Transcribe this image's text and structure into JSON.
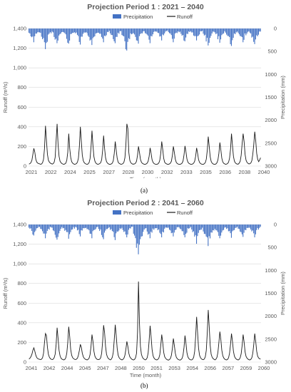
{
  "chart_data": [
    {
      "type": "line",
      "title": "Projection Period 1 : 2021 – 2040",
      "xlabel": "Time (month)",
      "ylabel": "Runoff (m³/s)",
      "y2label": "Precipitation (mm)",
      "ylim": [
        0,
        1400
      ],
      "y2lim": [
        0,
        3000
      ],
      "y2_inverted": true,
      "yticks": [
        "0",
        "200",
        "400",
        "600",
        "800",
        "1,000",
        "1,200",
        "1,400"
      ],
      "y2ticks": [
        "0",
        "500",
        "1000",
        "1500",
        "2000",
        "2500",
        "3000"
      ],
      "xticks": [
        "2021",
        "2022",
        "2024",
        "2025",
        "2027",
        "2028",
        "2030",
        "2032",
        "2033",
        "2035",
        "2036",
        "2038",
        "2040"
      ],
      "legend": [
        "Precipitation",
        "Runoff"
      ],
      "legend_position": "top-center",
      "grid": "horizontal",
      "series": [
        {
          "name": "Runoff",
          "type": "line",
          "color": "#1a1a1a",
          "annual_peaks": [
            180,
            410,
            430,
            330,
            400,
            360,
            310,
            250,
            430,
            200,
            185,
            250,
            200,
            205,
            185,
            300,
            240,
            330,
            330,
            350
          ],
          "values": [
            20,
            25,
            35,
            60,
            120,
            180,
            140,
            70,
            40,
            30,
            25,
            22,
            18,
            22,
            35,
            70,
            180,
            410,
            260,
            120,
            60,
            40,
            30,
            25,
            20,
            25,
            40,
            90,
            260,
            430,
            220,
            100,
            50,
            35,
            25,
            20,
            18,
            22,
            30,
            60,
            140,
            330,
            180,
            90,
            45,
            30,
            22,
            18,
            20,
            25,
            40,
            80,
            200,
            400,
            250,
            110,
            55,
            35,
            25,
            20,
            18,
            22,
            35,
            75,
            190,
            360,
            210,
            95,
            50,
            30,
            22,
            18,
            20,
            25,
            35,
            65,
            160,
            310,
            180,
            85,
            45,
            30,
            22,
            18,
            18,
            22,
            30,
            55,
            130,
            250,
            160,
            80,
            40,
            28,
            22,
            18,
            20,
            25,
            40,
            85,
            220,
            430,
            380,
            140,
            60,
            35,
            25,
            20,
            20,
            22,
            30,
            50,
            110,
            200,
            140,
            70,
            40,
            28,
            22,
            18,
            18,
            22,
            30,
            50,
            100,
            185,
            130,
            65,
            38,
            26,
            20,
            18,
            18,
            22,
            32,
            60,
            130,
            250,
            170,
            80,
            40,
            28,
            22,
            18,
            18,
            22,
            30,
            50,
            110,
            200,
            140,
            70,
            38,
            26,
            20,
            18,
            18,
            22,
            30,
            52,
            115,
            205,
            145,
            72,
            40,
            28,
            22,
            18,
            18,
            22,
            30,
            50,
            100,
            185,
            130,
            65,
            38,
            26,
            20,
            18,
            18,
            24,
            36,
            70,
            160,
            300,
            200,
            95,
            48,
            30,
            22,
            18,
            18,
            22,
            34,
            62,
            130,
            240,
            165,
            80,
            42,
            28,
            22,
            18,
            20,
            26,
            40,
            80,
            170,
            330,
            210,
            100,
            50,
            32,
            24,
            20,
            20,
            30,
            50,
            110,
            230,
            330,
            250,
            120,
            60,
            38,
            28,
            22,
            24,
            32,
            55,
            120,
            220,
            350,
            260,
            130,
            70,
            45,
            60,
            85
          ]
        },
        {
          "name": "Precipitation",
          "type": "bar",
          "color": "#4472c4",
          "axis": "y2",
          "unit": "mm",
          "annual_max": [
            300,
            450,
            320,
            330,
            350,
            360,
            300,
            320,
            480,
            330,
            320,
            260,
            300,
            280,
            260,
            370,
            310,
            380,
            300,
            340
          ]
        }
      ]
    },
    {
      "type": "line",
      "title": "Projection Period 2 : 2041 – 2060",
      "xlabel": "Time (month)",
      "ylabel": "Runoff (m³/s)",
      "y2label": "Precipitation (mm)",
      "ylim": [
        0,
        1400
      ],
      "y2lim": [
        0,
        3000
      ],
      "y2_inverted": true,
      "yticks": [
        "0",
        "200",
        "400",
        "600",
        "800",
        "1,000",
        "1,200",
        "1,400"
      ],
      "y2ticks": [
        "0",
        "500",
        "1000",
        "1500",
        "2000",
        "2500",
        "3000"
      ],
      "xticks": [
        "2041",
        "2042",
        "2044",
        "2045",
        "2047",
        "2048",
        "2050",
        "2051",
        "2053",
        "2054",
        "2056",
        "2057",
        "2059",
        "2060"
      ],
      "legend": [
        "Precipitation",
        "Runoff"
      ],
      "legend_position": "top-center",
      "grid": "horizontal",
      "series": [
        {
          "name": "Runoff",
          "type": "line",
          "color": "#1a1a1a",
          "annual_peaks": [
            145,
            290,
            350,
            360,
            180,
            280,
            375,
            380,
            210,
            820,
            370,
            280,
            240,
            270,
            460,
            530,
            310,
            290,
            280,
            290
          ],
          "values": [
            30,
            40,
            55,
            80,
            120,
            145,
            110,
            70,
            45,
            35,
            30,
            28,
            25,
            30,
            45,
            90,
            200,
            290,
            270,
            150,
            80,
            50,
            35,
            28,
            25,
            30,
            45,
            80,
            180,
            350,
            240,
            120,
            65,
            40,
            30,
            25,
            22,
            28,
            45,
            90,
            200,
            360,
            260,
            130,
            70,
            45,
            35,
            28,
            25,
            30,
            40,
            70,
            120,
            180,
            150,
            90,
            55,
            38,
            30,
            25,
            22,
            28,
            40,
            75,
            160,
            280,
            210,
            110,
            60,
            40,
            30,
            25,
            25,
            30,
            45,
            90,
            210,
            375,
            300,
            160,
            80,
            50,
            35,
            28,
            22,
            30,
            50,
            100,
            230,
            380,
            270,
            140,
            70,
            45,
            32,
            26,
            22,
            28,
            40,
            70,
            130,
            210,
            160,
            90,
            55,
            40,
            30,
            24,
            22,
            28,
            45,
            90,
            300,
            820,
            400,
            160,
            80,
            50,
            35,
            28,
            22,
            28,
            45,
            95,
            220,
            370,
            260,
            130,
            65,
            42,
            30,
            24,
            22,
            28,
            40,
            75,
            170,
            280,
            200,
            100,
            55,
            38,
            28,
            22,
            20,
            26,
            38,
            70,
            140,
            240,
            170,
            90,
            50,
            35,
            26,
            22,
            20,
            26,
            38,
            72,
            150,
            270,
            190,
            95,
            52,
            36,
            26,
            22,
            22,
            30,
            50,
            110,
            260,
            460,
            300,
            140,
            70,
            45,
            32,
            26,
            24,
            32,
            55,
            120,
            300,
            530,
            360,
            170,
            80,
            50,
            35,
            28,
            22,
            30,
            48,
            100,
            200,
            310,
            230,
            120,
            65,
            42,
            30,
            24,
            22,
            28,
            45,
            90,
            180,
            290,
            210,
            110,
            60,
            40,
            30,
            24,
            22,
            28,
            45,
            85,
            170,
            280,
            205,
            105,
            58,
            40,
            30,
            24,
            22,
            28,
            45,
            90,
            180,
            290,
            210,
            110,
            60,
            42,
            34,
            30
          ]
        },
        {
          "name": "Precipitation",
          "type": "bar",
          "color": "#4472c4",
          "axis": "y2",
          "unit": "mm",
          "annual_max": [
            240,
            300,
            330,
            310,
            260,
            300,
            320,
            340,
            280,
            650,
            300,
            280,
            260,
            280,
            420,
            470,
            300,
            290,
            270,
            280
          ]
        }
      ]
    }
  ],
  "panel_labels": [
    "(a)",
    "(b)"
  ]
}
